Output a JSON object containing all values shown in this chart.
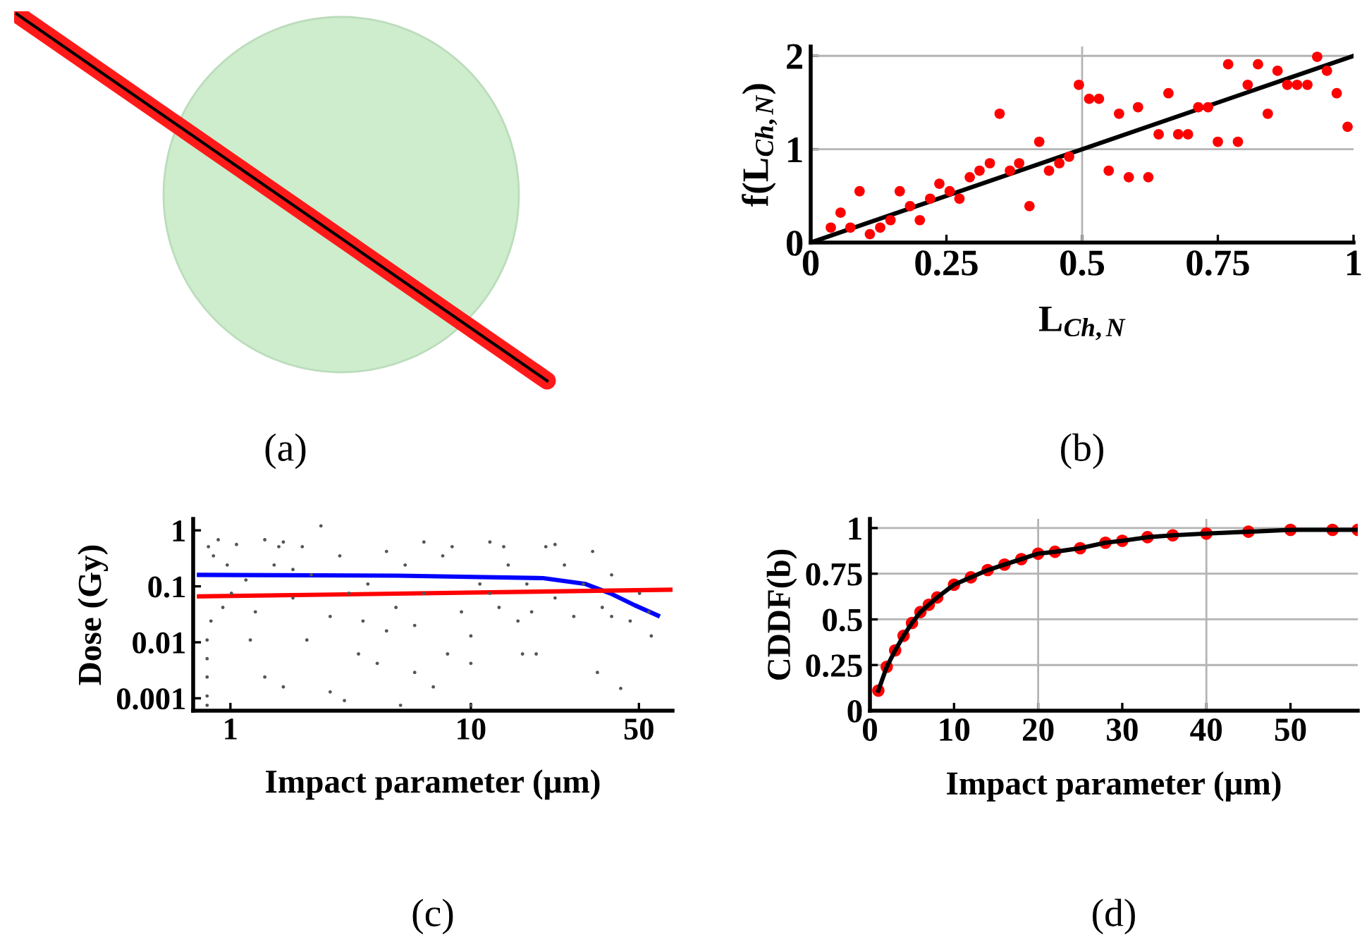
{
  "chart_data": [
    {
      "type": "other",
      "annotations": [
        "(a)"
      ]
    },
    {
      "type": "scatter",
      "xlabel": "L$_{Ch,N}$",
      "ylabel": "f(L$_{Ch,N}$)",
      "annotations": [
        "(b)"
      ],
      "xlim": [
        0,
        1
      ],
      "ylim": [
        0,
        2.1
      ],
      "xticks": [
        0,
        0.25,
        0.5,
        0.75,
        1
      ],
      "yticks": [
        0,
        1,
        2
      ],
      "ref_lines": [
        {
          "axis": "x",
          "value": 0.5,
          "color": "#b4b4b4"
        },
        {
          "axis": "y",
          "value": 1,
          "color": "#b4b4b4"
        },
        {
          "axis": "y",
          "value": 2,
          "color": "#b4b4b4"
        }
      ],
      "series": [
        {
          "type": "scatter",
          "marker": "circle",
          "color": "#ff0000",
          "x": [
            0.037,
            0.055,
            0.073,
            0.09,
            0.109,
            0.128,
            0.147,
            0.164,
            0.183,
            0.201,
            0.22,
            0.237,
            0.256,
            0.274,
            0.293,
            0.311,
            0.33,
            0.348,
            0.367,
            0.384,
            0.403,
            0.421,
            0.439,
            0.458,
            0.476,
            0.494,
            0.513,
            0.531,
            0.549,
            0.568,
            0.586,
            0.603,
            0.622,
            0.641,
            0.659,
            0.677,
            0.695,
            0.714,
            0.732,
            0.75,
            0.769,
            0.787,
            0.805,
            0.824,
            0.842,
            0.86,
            0.878,
            0.896,
            0.915,
            0.933,
            0.951,
            0.969,
            0.989
          ],
          "values": [
            0.16,
            0.32,
            0.16,
            0.55,
            0.09,
            0.16,
            0.24,
            0.55,
            0.39,
            0.24,
            0.47,
            0.63,
            0.55,
            0.47,
            0.7,
            0.77,
            0.85,
            1.38,
            0.77,
            0.85,
            0.39,
            1.08,
            0.77,
            0.85,
            0.92,
            1.69,
            1.54,
            1.54,
            0.77,
            1.38,
            0.7,
            1.45,
            0.7,
            1.16,
            1.6,
            1.16,
            1.16,
            1.45,
            1.45,
            1.08,
            1.91,
            1.08,
            1.69,
            1.91,
            1.38,
            1.84,
            1.69,
            1.69,
            1.69,
            1.99,
            1.84,
            1.6,
            1.24
          ]
        },
        {
          "type": "line",
          "line_style": "solid",
          "color": "#000000",
          "x": [
            0,
            1
          ],
          "values": [
            0,
            2
          ]
        }
      ]
    },
    {
      "type": "scatter",
      "log": "xy",
      "xlabel": "Impact parameter (μm)",
      "ylabel": "Dose (Gy)",
      "annotations": [
        "(c)"
      ],
      "xlim": [
        0.7,
        69
      ],
      "ylim": [
        0.0006,
        1.6
      ],
      "xticks": [
        1,
        10,
        50
      ],
      "yticks": [
        0.001,
        0.01,
        0.1,
        1
      ],
      "series": [
        {
          "type": "scatter",
          "marker": "circle",
          "color": "#555555",
          "x": [
            0.81,
            0.85,
            0.89,
            0.97,
            0.93,
            0.83,
            0.8,
            0.8,
            0.8,
            0.8,
            0.8,
            1.06,
            1.16,
            1.27,
            1.39,
            1.52,
            1.66,
            1.82,
            1.99,
            2.17,
            2.38,
            2.6,
            2.85,
            3.11,
            3.41,
            3.73,
            4.08,
            4.46,
            4.88,
            5.33,
            5.84,
            6.38,
            6.98,
            7.64,
            8.36,
            9.14,
            10,
            10.9,
            12.0,
            13.1,
            14.3,
            15.7,
            17.1,
            18.7,
            20.5,
            22.4,
            24.5,
            26.8,
            29.4,
            32.1,
            33.6,
            35.2,
            38.5,
            42.0,
            46.0,
            50.3,
            55.0,
            56.3,
            1.66,
            2.6,
            1.21,
            5.84,
            10,
            16.4,
            2.08,
            3.56,
            8.0,
            1.39,
            6.38,
            22.4,
            38.5,
            1.01,
            1.82,
            4.46,
            12.0,
            17.9,
            2.98,
            5.1,
            10,
            1.59,
            13.7
          ],
          "values": [
            0.51,
            0.35,
            0.68,
            0.24,
            0.042,
            0.024,
            0.011,
            0.0051,
            0.0024,
            0.0011,
            0.00075,
            0.56,
            0.13,
            0.035,
            0.0024,
            0.24,
            0.62,
            0.062,
            0.51,
            0.16,
            1.2,
            0.029,
            0.35,
            0.075,
            0.0062,
            0.11,
            0.0042,
            0.42,
            0.042,
            0.24,
            0.02,
            0.075,
            0.0016,
            0.35,
            0.51,
            0.035,
            0.013,
            0.11,
            0.62,
            0.042,
            0.24,
            0.024,
            0.11,
            0.0062,
            0.51,
            0.062,
            0.24,
            0.029,
            0.11,
            0.42,
            0.0029,
            0.042,
            0.16,
            0.0015,
            0.024,
            0.075,
            0.035,
            0.013,
            0.0016,
            0.0013,
            0.011,
            0.0029,
            0.0042,
            0.0062,
            0.011,
            0.024,
            0.0062,
            0.68,
            0.62,
            0.56,
            0.029,
            0.075,
            0.2,
            0.016,
            0.075,
            0.035,
            0.00091,
            0.00075,
            0.00075,
            0.51,
            0.51
          ]
        },
        {
          "type": "line",
          "line_style": "solid",
          "color": "#0000ff",
          "x": [
            0.74,
            5,
            20,
            30,
            38,
            48,
            60
          ],
          "values": [
            0.16,
            0.155,
            0.14,
            0.11,
            0.075,
            0.046,
            0.03
          ]
        },
        {
          "type": "line",
          "line_style": "solid",
          "color": "#ff0000",
          "x": [
            0.74,
            69
          ],
          "values": [
            0.066,
            0.087
          ]
        }
      ]
    },
    {
      "type": "line",
      "xlabel": "Impact parameter (μm)",
      "ylabel": "CDDF(b)",
      "annotations": [
        "(d)"
      ],
      "xlim": [
        0,
        58
      ],
      "ylim": [
        0,
        1.05
      ],
      "xticks": [
        0,
        10,
        20,
        30,
        40,
        50
      ],
      "yticks": [
        0,
        0.25,
        0.5,
        0.75,
        1
      ],
      "grid": "y",
      "ref_lines": [
        {
          "axis": "x",
          "value": 20,
          "color": "#b4b4b4"
        },
        {
          "axis": "x",
          "value": 40,
          "color": "#b4b4b4"
        }
      ],
      "series": [
        {
          "type": "scatter",
          "marker": "circle",
          "color": "#ff0000",
          "x": [
            1,
            2,
            3,
            4,
            5,
            6,
            7,
            8,
            10,
            12,
            14,
            16,
            18,
            20,
            22,
            25,
            28,
            30,
            33,
            36,
            40,
            45,
            50,
            55,
            58
          ],
          "values": [
            0.11,
            0.24,
            0.33,
            0.41,
            0.48,
            0.54,
            0.58,
            0.62,
            0.69,
            0.73,
            0.77,
            0.8,
            0.83,
            0.86,
            0.87,
            0.89,
            0.92,
            0.93,
            0.95,
            0.96,
            0.97,
            0.98,
            0.99,
            0.99,
            0.99
          ]
        },
        {
          "type": "line",
          "line_style": "solid",
          "color": "#000000",
          "x": [
            1,
            2,
            3,
            4,
            5,
            6,
            7,
            8,
            10,
            12,
            14,
            16,
            18,
            20,
            22,
            25,
            28,
            30,
            33,
            36,
            40,
            45,
            50,
            55,
            58
          ],
          "values": [
            0.11,
            0.24,
            0.33,
            0.41,
            0.48,
            0.54,
            0.58,
            0.62,
            0.69,
            0.73,
            0.77,
            0.8,
            0.83,
            0.86,
            0.87,
            0.89,
            0.92,
            0.93,
            0.95,
            0.96,
            0.97,
            0.98,
            0.99,
            0.99,
            0.99
          ]
        }
      ]
    }
  ]
}
